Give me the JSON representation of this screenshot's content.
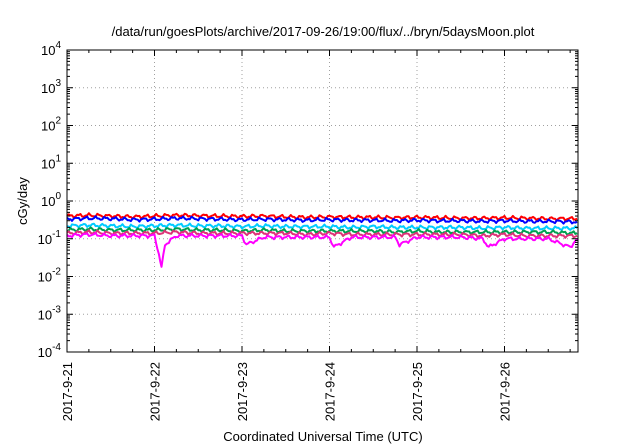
{
  "chart_data": {
    "type": "line",
    "title": "/data/run/goesPlots/archive/2017-09-26/19:00/flux/../bryn/5daysMoon.plot",
    "xlabel": "Coordinated Universal Time (UTC)",
    "ylabel": "cGy/day",
    "yscale": "log",
    "ylim": [
      0.0001,
      10000
    ],
    "xlim": [
      0,
      5.83
    ],
    "grid": true,
    "x_tick_labels": [
      "2017-9-21",
      "2017-9-22",
      "2017-9-23",
      "2017-9-24",
      "2017-9-25",
      "2017-9-26"
    ],
    "x_tick_values": [
      0,
      1,
      2,
      3,
      4,
      5
    ],
    "y_tick_labels": [
      {
        "base": "10",
        "exp": "-4",
        "value": 0.0001
      },
      {
        "base": "10",
        "exp": "-3",
        "value": 0.001
      },
      {
        "base": "10",
        "exp": "-2",
        "value": 0.01
      },
      {
        "base": "10",
        "exp": "-1",
        "value": 0.1
      },
      {
        "base": "10",
        "exp": "0",
        "value": 1
      },
      {
        "base": "10",
        "exp": "1",
        "value": 10
      },
      {
        "base": "10",
        "exp": "2",
        "value": 100
      },
      {
        "base": "10",
        "exp": "3",
        "value": 1000
      },
      {
        "base": "10",
        "exp": "4",
        "value": 10000
      }
    ],
    "series": [
      {
        "color": "#ff0000",
        "x": [
          0,
          0.25,
          0.5,
          0.75,
          1,
          1.25,
          1.5,
          1.75,
          2,
          2.25,
          2.5,
          2.75,
          3,
          3.25,
          3.5,
          3.75,
          4,
          4.25,
          4.5,
          4.75,
          5,
          5.25,
          5.5,
          5.83
        ],
        "values": [
          0.4,
          0.42,
          0.4,
          0.38,
          0.4,
          0.42,
          0.41,
          0.4,
          0.39,
          0.4,
          0.38,
          0.37,
          0.38,
          0.37,
          0.37,
          0.36,
          0.37,
          0.36,
          0.35,
          0.35,
          0.36,
          0.35,
          0.34,
          0.34
        ]
      },
      {
        "color": "#0000ff",
        "x": [
          0,
          0.25,
          0.5,
          0.75,
          1,
          1.25,
          1.5,
          1.75,
          2,
          2.25,
          2.5,
          2.75,
          3,
          3.25,
          3.5,
          3.75,
          4,
          4.25,
          4.5,
          4.75,
          5,
          5.25,
          5.5,
          5.83
        ],
        "values": [
          0.33,
          0.35,
          0.34,
          0.32,
          0.33,
          0.35,
          0.34,
          0.33,
          0.32,
          0.33,
          0.32,
          0.31,
          0.32,
          0.31,
          0.31,
          0.3,
          0.31,
          0.3,
          0.3,
          0.29,
          0.3,
          0.29,
          0.29,
          0.28
        ]
      },
      {
        "color": "#00ccff",
        "x": [
          0,
          0.25,
          0.5,
          0.75,
          1,
          1.25,
          1.5,
          1.75,
          2,
          2.25,
          2.5,
          2.75,
          3,
          3.25,
          3.5,
          3.75,
          4,
          4.25,
          4.5,
          4.75,
          5,
          5.25,
          5.5,
          5.83
        ],
        "values": [
          0.22,
          0.23,
          0.22,
          0.21,
          0.22,
          0.23,
          0.22,
          0.22,
          0.21,
          0.22,
          0.21,
          0.21,
          0.21,
          0.2,
          0.21,
          0.2,
          0.2,
          0.2,
          0.2,
          0.19,
          0.2,
          0.19,
          0.19,
          0.19
        ]
      },
      {
        "color": "#00a050",
        "x": [
          0,
          0.25,
          0.5,
          0.75,
          1,
          1.25,
          1.5,
          1.75,
          2,
          2.25,
          2.5,
          2.75,
          3,
          3.25,
          3.5,
          3.75,
          4,
          4.25,
          4.5,
          4.75,
          5,
          5.25,
          5.5,
          5.83
        ],
        "values": [
          0.17,
          0.18,
          0.17,
          0.17,
          0.17,
          0.18,
          0.17,
          0.17,
          0.16,
          0.17,
          0.16,
          0.16,
          0.16,
          0.16,
          0.16,
          0.15,
          0.16,
          0.15,
          0.15,
          0.15,
          0.15,
          0.15,
          0.15,
          0.14
        ]
      },
      {
        "color": "#dd3377",
        "x": [
          0,
          0.25,
          0.5,
          0.75,
          1,
          1.25,
          1.5,
          1.75,
          2,
          2.25,
          2.5,
          2.75,
          3,
          3.25,
          3.5,
          3.75,
          4,
          4.25,
          4.5,
          4.75,
          5,
          5.25,
          5.5,
          5.83
        ],
        "values": [
          0.14,
          0.15,
          0.14,
          0.14,
          0.14,
          0.15,
          0.14,
          0.14,
          0.14,
          0.14,
          0.14,
          0.13,
          0.14,
          0.13,
          0.13,
          0.13,
          0.13,
          0.13,
          0.13,
          0.12,
          0.13,
          0.12,
          0.12,
          0.12
        ]
      },
      {
        "color": "#ff00ff",
        "x": [
          0,
          0.25,
          0.5,
          0.75,
          1,
          1.05,
          1.08,
          1.12,
          1.25,
          1.5,
          1.75,
          2,
          2.05,
          2.25,
          2.5,
          2.75,
          3,
          3.05,
          3.25,
          3.5,
          3.75,
          3.8,
          4,
          4.25,
          4.5,
          4.75,
          4.82,
          5,
          5.25,
          5.5,
          5.75,
          5.83
        ],
        "values": [
          0.12,
          0.13,
          0.12,
          0.12,
          0.12,
          0.04,
          0.017,
          0.07,
          0.12,
          0.12,
          0.12,
          0.12,
          0.07,
          0.11,
          0.11,
          0.11,
          0.11,
          0.06,
          0.11,
          0.11,
          0.11,
          0.07,
          0.11,
          0.11,
          0.11,
          0.1,
          0.06,
          0.1,
          0.1,
          0.1,
          0.06,
          0.1
        ]
      }
    ]
  }
}
